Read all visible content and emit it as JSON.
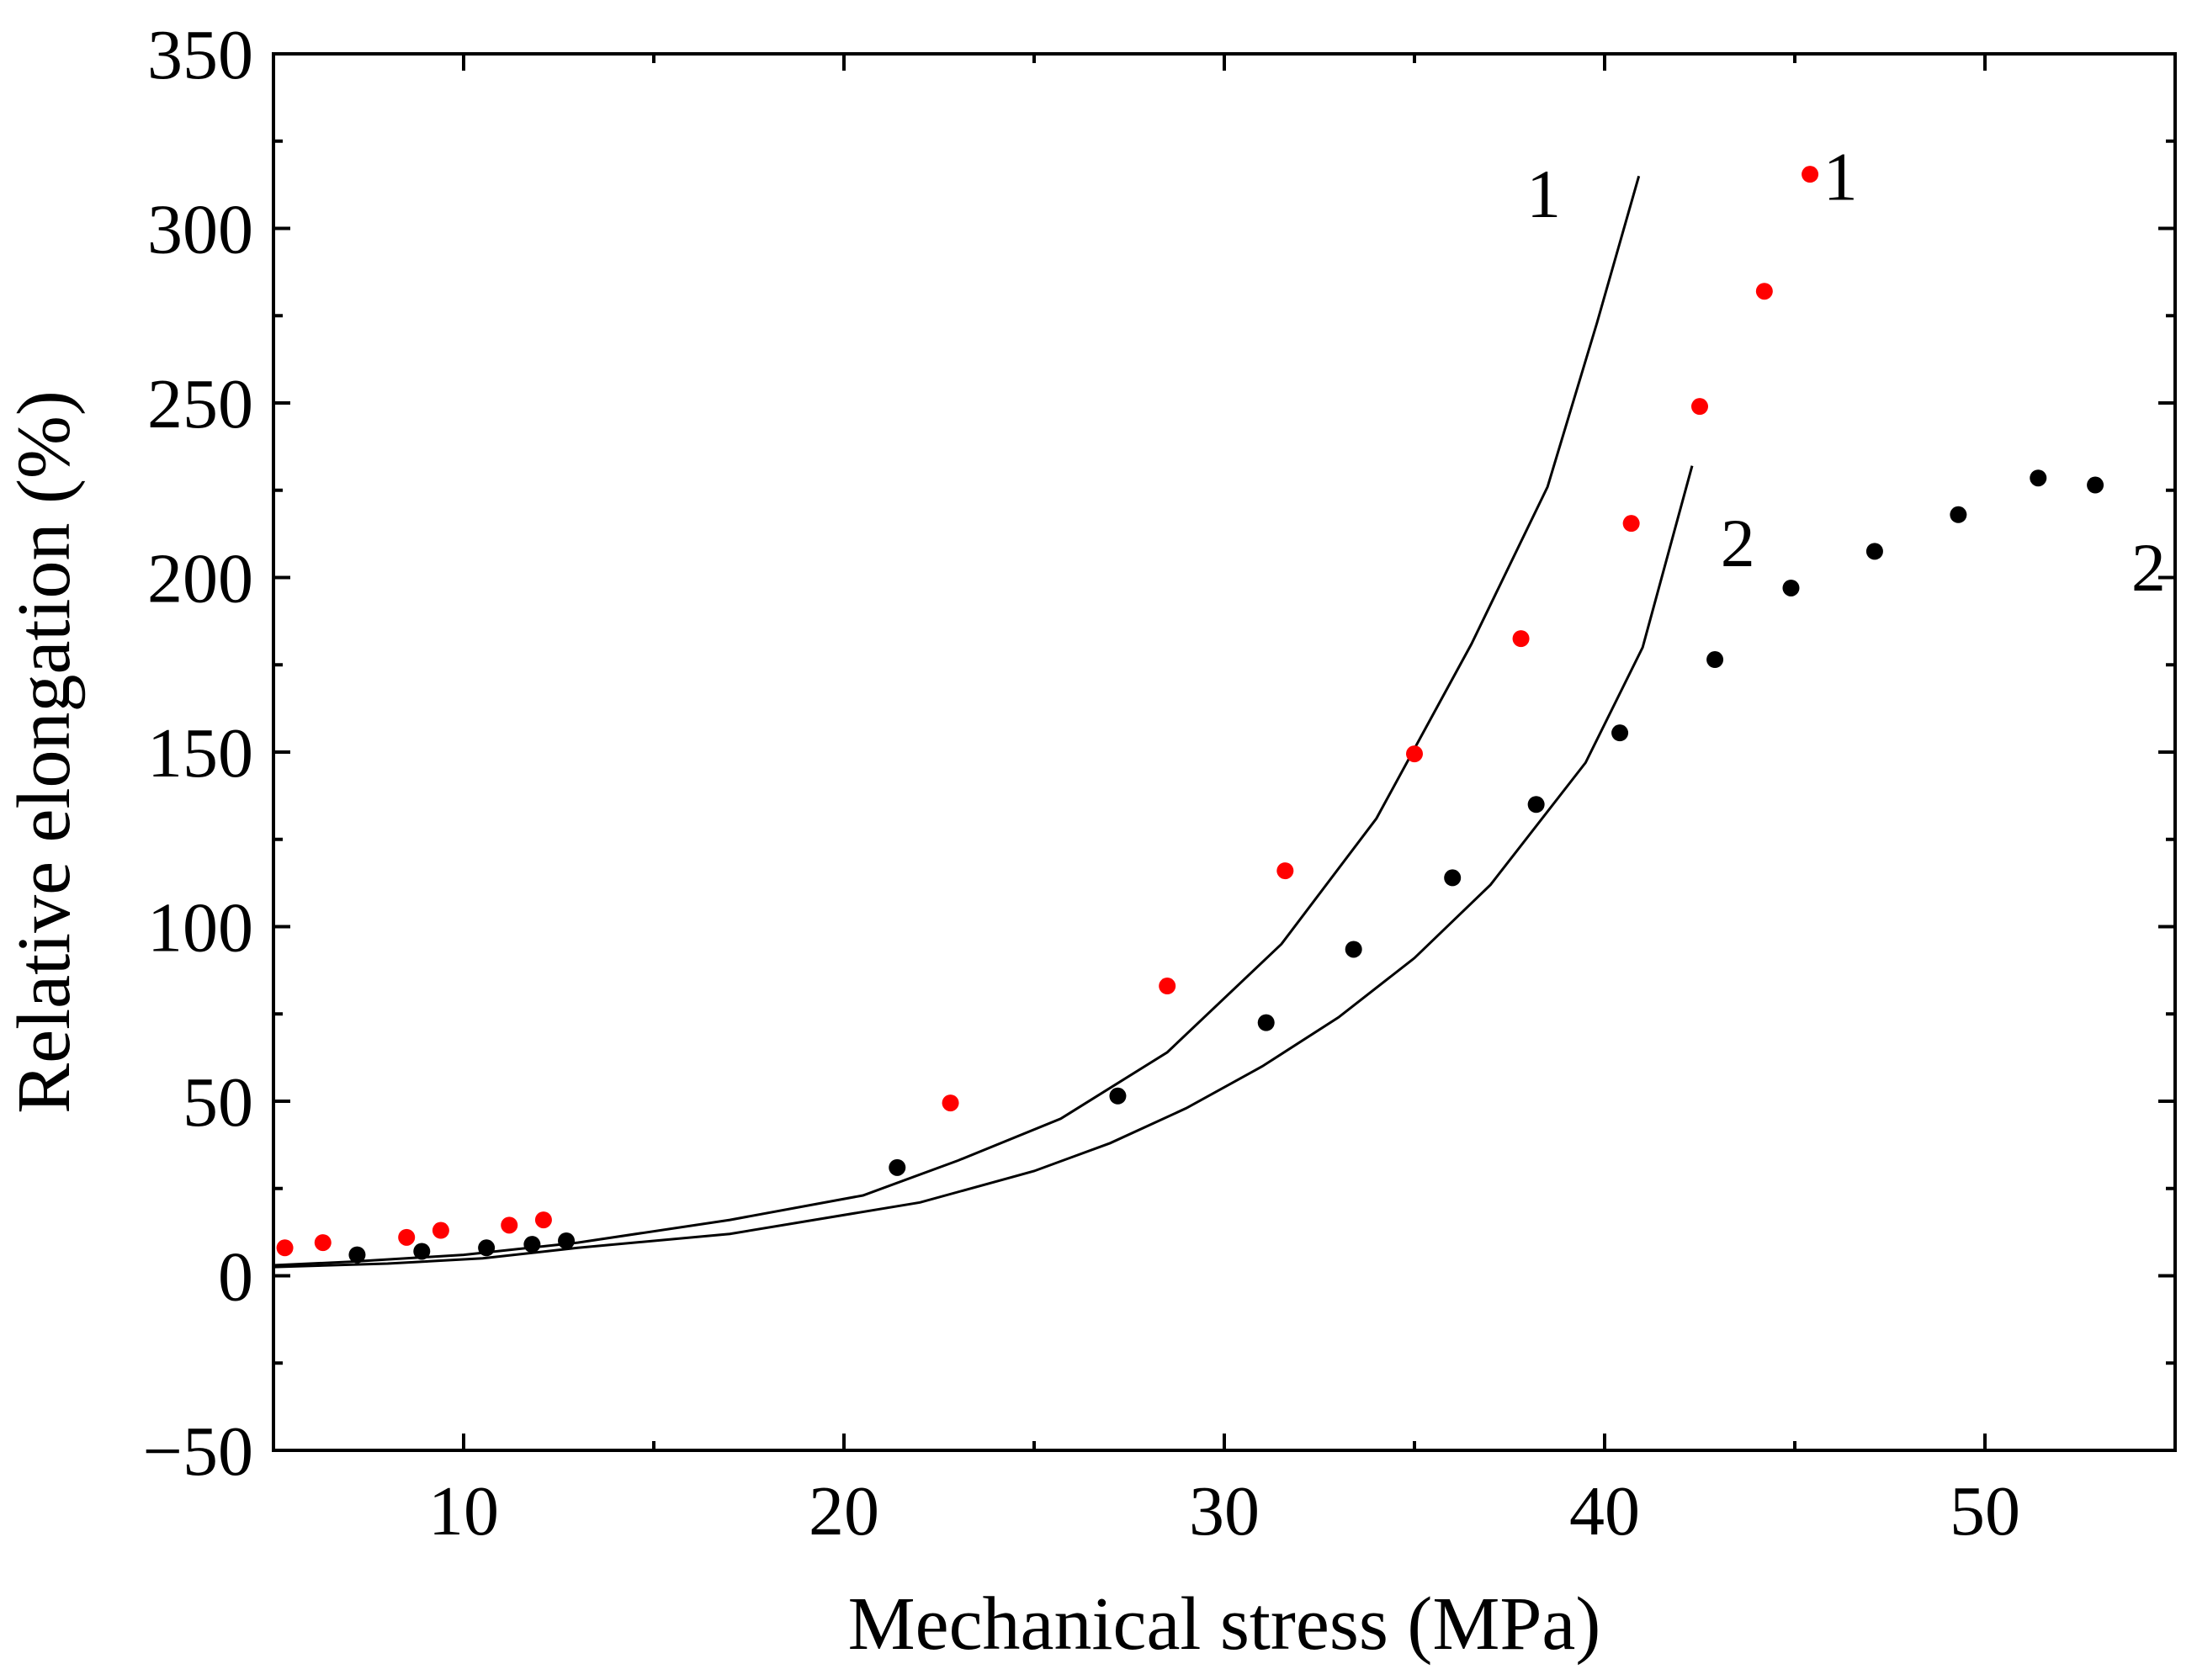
{
  "chart_data": {
    "type": "scatter",
    "title": "",
    "xlabel": "Mechanical stress (MPa)",
    "ylabel": "Relative elongation (%)",
    "xlim": [
      5,
      55
    ],
    "ylim": [
      -50,
      350
    ],
    "x_ticks": [
      10,
      20,
      30,
      40,
      50
    ],
    "x_tick_labels": [
      "10",
      "20",
      "30",
      "40",
      "50"
    ],
    "y_ticks": [
      -50,
      0,
      50,
      100,
      150,
      200,
      250,
      300,
      350
    ],
    "y_tick_labels": [
      "−50",
      "0",
      "50",
      "100",
      "150",
      "200",
      "250",
      "300",
      "350"
    ],
    "grid": false,
    "series": [
      {
        "kind": "points",
        "color": "#ff0000",
        "points": [
          [
            5.3,
            8
          ],
          [
            6.3,
            9.5
          ],
          [
            8.5,
            11
          ],
          [
            9.4,
            13
          ],
          [
            11.2,
            14.5
          ],
          [
            12.1,
            16
          ],
          [
            22.8,
            49.5
          ],
          [
            28.5,
            83
          ],
          [
            31.6,
            116
          ],
          [
            35.0,
            149.5
          ],
          [
            37.8,
            182.5
          ],
          [
            40.7,
            215.5
          ],
          [
            42.5,
            249
          ],
          [
            44.2,
            282
          ],
          [
            45.4,
            315.5
          ]
        ]
      },
      {
        "kind": "points",
        "color": "#000000",
        "points": [
          [
            7.2,
            6
          ],
          [
            8.9,
            7
          ],
          [
            10.6,
            8
          ],
          [
            11.8,
            9
          ],
          [
            12.7,
            10
          ],
          [
            21.4,
            31
          ],
          [
            27.2,
            51.5
          ],
          [
            31.1,
            72.5
          ],
          [
            33.4,
            93.5
          ],
          [
            36.0,
            114
          ],
          [
            38.2,
            135
          ],
          [
            40.4,
            155.5
          ],
          [
            42.9,
            176.5
          ],
          [
            44.9,
            197
          ],
          [
            47.1,
            207.5
          ],
          [
            49.3,
            218
          ],
          [
            51.4,
            228.5
          ],
          [
            52.9,
            226.5
          ]
        ]
      },
      {
        "kind": "line",
        "color": "#000000",
        "points": [
          [
            5.0,
            3
          ],
          [
            7.0,
            4
          ],
          [
            10.0,
            6
          ],
          [
            13.0,
            9.5
          ],
          [
            17.0,
            16
          ],
          [
            20.5,
            23
          ],
          [
            23.0,
            33
          ],
          [
            25.7,
            45
          ],
          [
            28.5,
            64
          ],
          [
            31.5,
            95
          ],
          [
            34.0,
            131
          ],
          [
            36.5,
            181
          ],
          [
            38.5,
            226
          ],
          [
            39.8,
            273
          ],
          [
            40.9,
            315
          ]
        ]
      },
      {
        "kind": "line",
        "color": "#000000",
        "points": [
          [
            5.0,
            2.5
          ],
          [
            8.0,
            3.5
          ],
          [
            10.5,
            5
          ],
          [
            13.0,
            8
          ],
          [
            17.0,
            12
          ],
          [
            22.0,
            21
          ],
          [
            25.0,
            30
          ],
          [
            27.0,
            38
          ],
          [
            29.0,
            48
          ],
          [
            31.0,
            60
          ],
          [
            33.0,
            74
          ],
          [
            35.0,
            91
          ],
          [
            37.0,
            112
          ],
          [
            39.5,
            147
          ],
          [
            41.0,
            180
          ],
          [
            42.3,
            232
          ]
        ]
      }
    ],
    "annotations": [
      {
        "text": "1",
        "x": 38.4,
        "y": 310
      },
      {
        "text": "1",
        "x": 46.2,
        "y": 315
      },
      {
        "text": "2",
        "x": 43.5,
        "y": 210
      },
      {
        "text": "2",
        "x": 54.3,
        "y": 203
      }
    ]
  }
}
